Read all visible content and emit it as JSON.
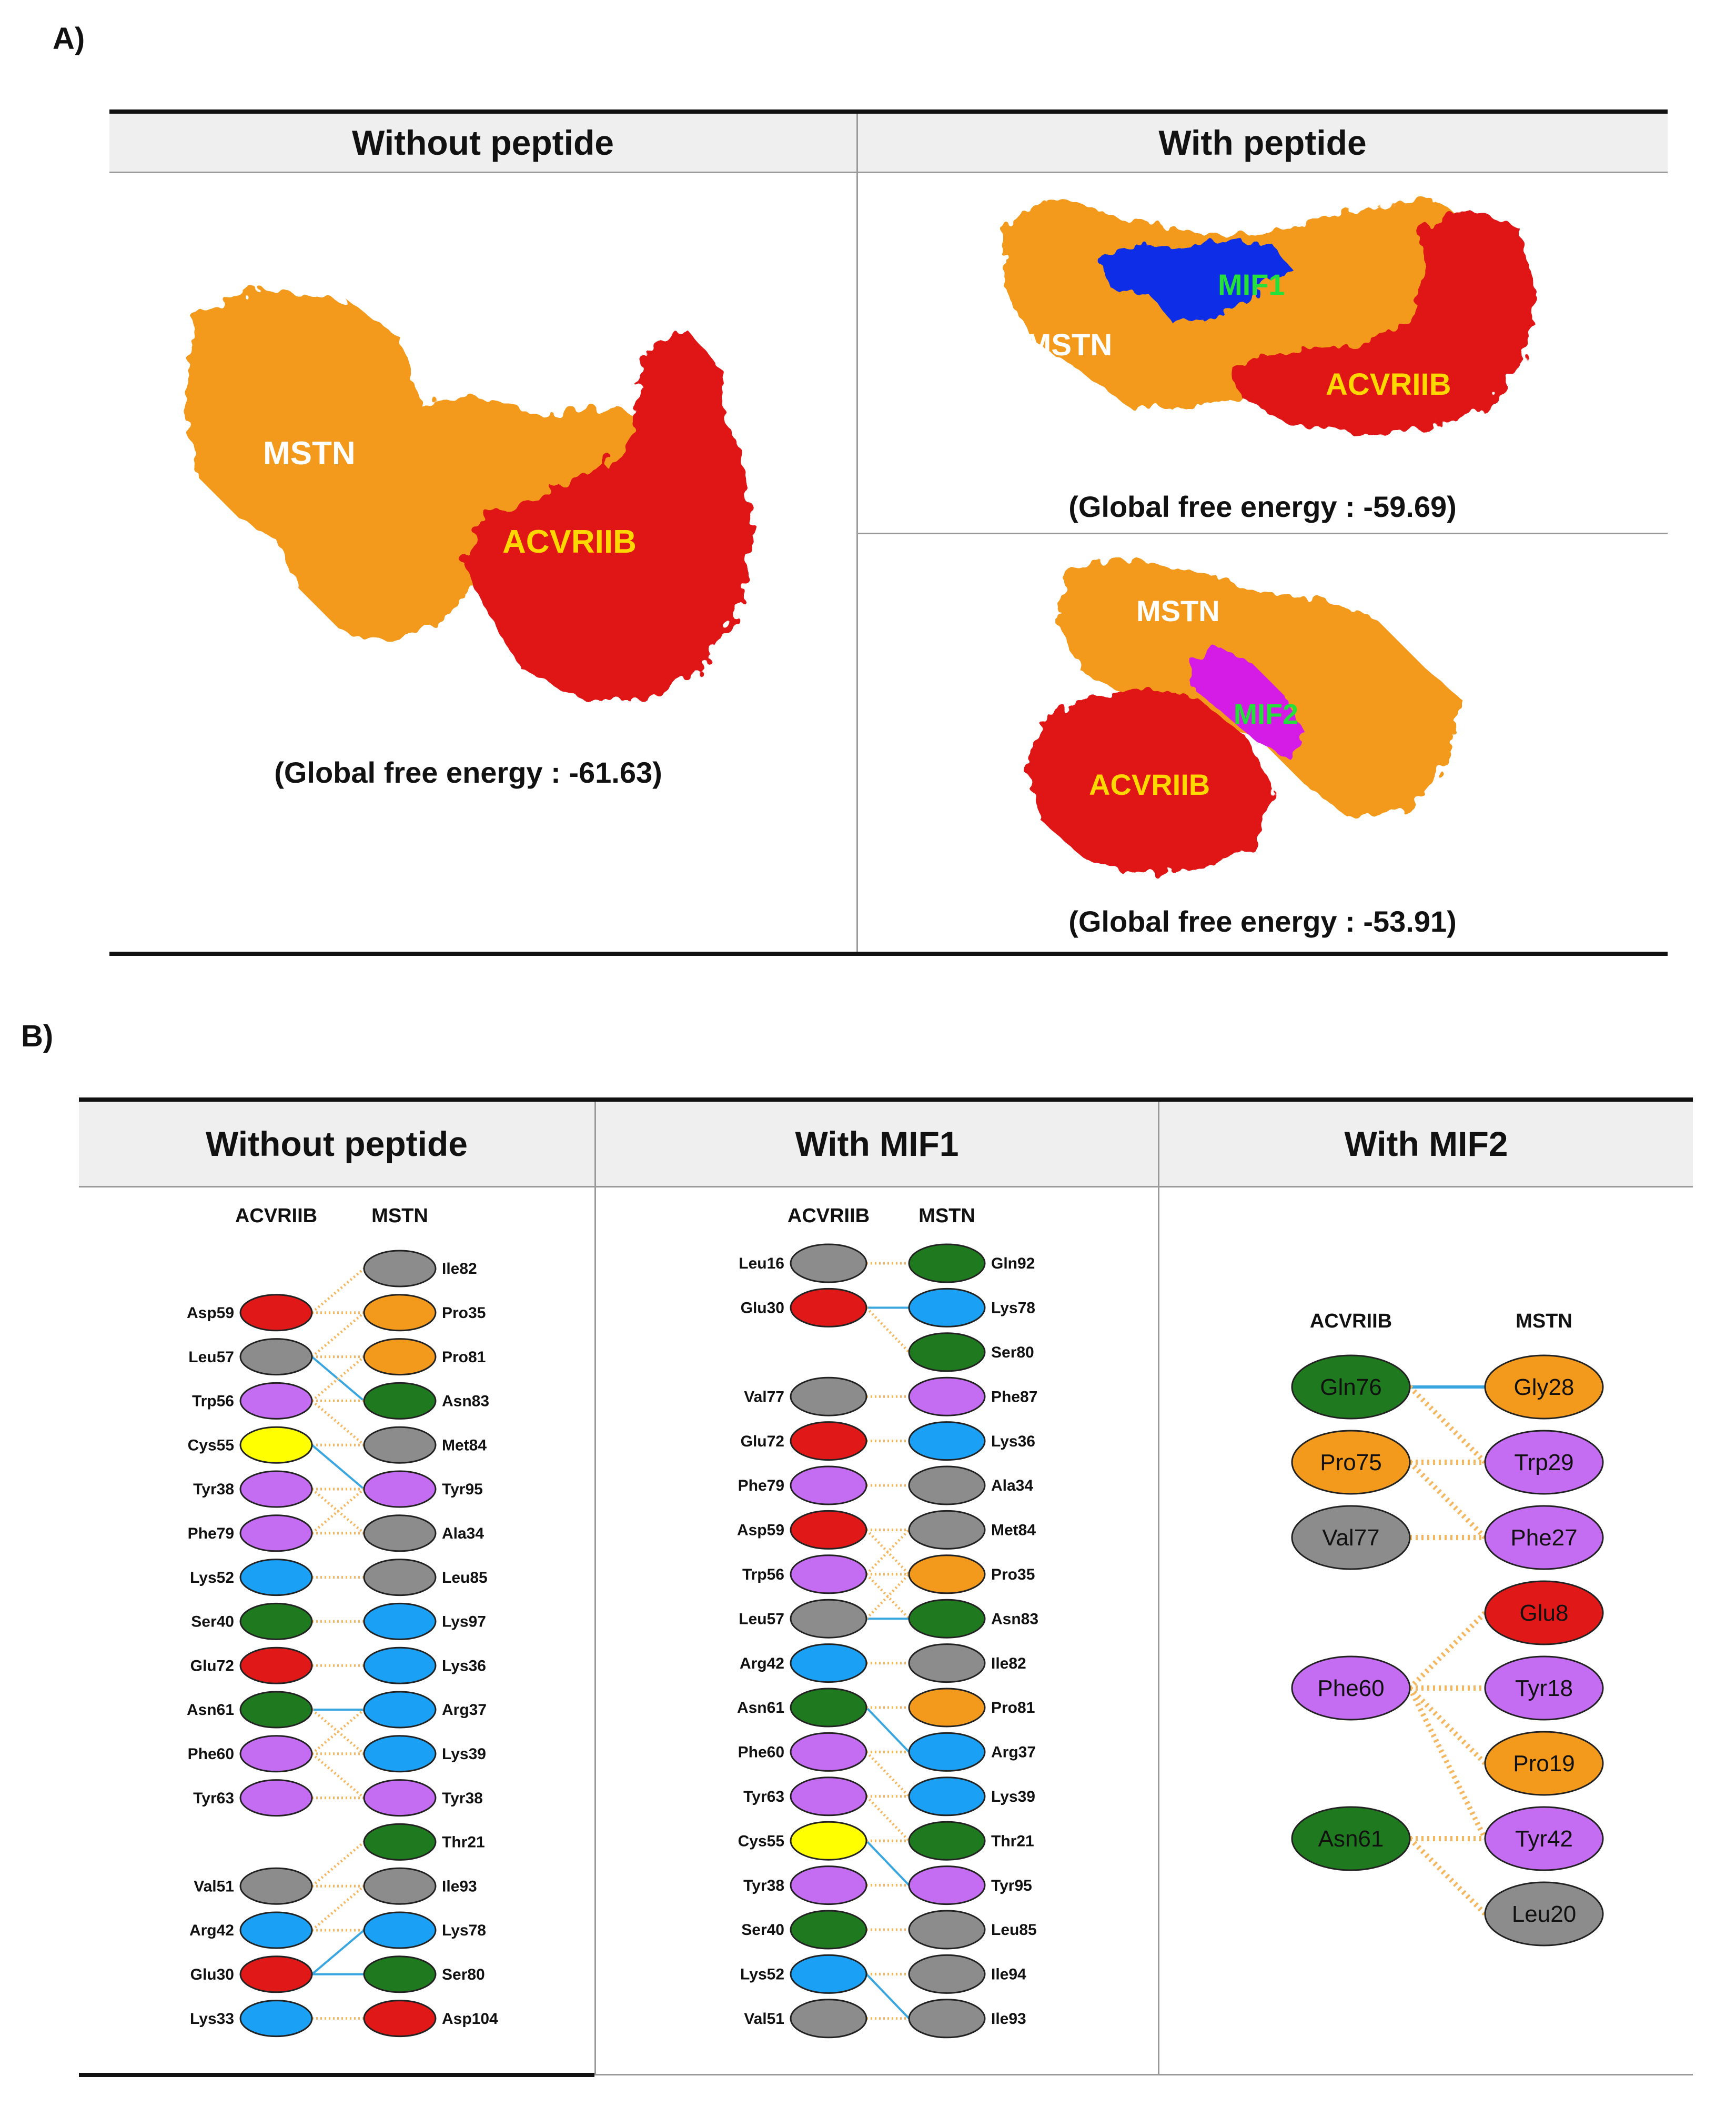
{
  "figure": {
    "panel_a_label": "A)",
    "panel_b_label": "B)",
    "colors": {
      "orange": "#f39a1c",
      "red": "#e01818",
      "blue": "#0a2ee6",
      "magenta": "#d41ee6",
      "gray": "#8c8c8c",
      "green": "#1f7a1f",
      "sky": "#1aa0f4",
      "violet": "#c46cf2",
      "yellow": "#ffff00",
      "label_white": "#ffffff",
      "label_yellow": "#ffd800",
      "label_green": "#25e03a"
    }
  },
  "panel_a": {
    "headers": {
      "left": "Without peptide",
      "right": "With peptide"
    },
    "no_peptide": {
      "mstn": "MSTN",
      "acvriib": "ACVRIIB",
      "energy": "(Global free energy : -61.63)"
    },
    "mif1": {
      "peptide": "MIF1",
      "mstn": "MSTN",
      "acvriib": "ACVRIIB",
      "energy": "(Global free energy : -59.69)"
    },
    "mif2": {
      "peptide": "MIF2",
      "mstn": "MSTN",
      "acvriib": "ACVRIIB",
      "energy": "(Global free energy : -53.91)"
    }
  },
  "panel_b": {
    "headers": [
      "Without peptide",
      "With MIF1",
      "With MIF2"
    ],
    "col_left": "ACVRIIB",
    "col_right": "MSTN",
    "no_peptide": {
      "left": [
        {
          "slot": 1,
          "name": "Asp59",
          "color": "red"
        },
        {
          "slot": 2,
          "name": "Leu57",
          "color": "gray"
        },
        {
          "slot": 3,
          "name": "Trp56",
          "color": "violet"
        },
        {
          "slot": 4,
          "name": "Cys55",
          "color": "yellow"
        },
        {
          "slot": 5,
          "name": "Tyr38",
          "color": "violet"
        },
        {
          "slot": 6,
          "name": "Phe79",
          "color": "violet"
        },
        {
          "slot": 7,
          "name": "Lys52",
          "color": "sky"
        },
        {
          "slot": 8,
          "name": "Ser40",
          "color": "green"
        },
        {
          "slot": 9,
          "name": "Glu72",
          "color": "red"
        },
        {
          "slot": 10,
          "name": "Asn61",
          "color": "green"
        },
        {
          "slot": 11,
          "name": "Phe60",
          "color": "violet"
        },
        {
          "slot": 12,
          "name": "Tyr63",
          "color": "violet"
        },
        {
          "slot": 14,
          "name": "Val51",
          "color": "gray"
        },
        {
          "slot": 15,
          "name": "Arg42",
          "color": "sky"
        },
        {
          "slot": 16,
          "name": "Glu30",
          "color": "red"
        },
        {
          "slot": 17,
          "name": "Lys33",
          "color": "sky"
        }
      ],
      "right": [
        {
          "slot": 0,
          "name": "Ile82",
          "color": "gray"
        },
        {
          "slot": 1,
          "name": "Pro35",
          "color": "orange"
        },
        {
          "slot": 2,
          "name": "Pro81",
          "color": "orange"
        },
        {
          "slot": 3,
          "name": "Asn83",
          "color": "green"
        },
        {
          "slot": 4,
          "name": "Met84",
          "color": "gray"
        },
        {
          "slot": 5,
          "name": "Tyr95",
          "color": "violet"
        },
        {
          "slot": 6,
          "name": "Ala34",
          "color": "gray"
        },
        {
          "slot": 7,
          "name": "Leu85",
          "color": "gray"
        },
        {
          "slot": 8,
          "name": "Lys97",
          "color": "sky"
        },
        {
          "slot": 9,
          "name": "Lys36",
          "color": "sky"
        },
        {
          "slot": 10,
          "name": "Arg37",
          "color": "sky"
        },
        {
          "slot": 11,
          "name": "Lys39",
          "color": "sky"
        },
        {
          "slot": 12,
          "name": "Tyr38",
          "color": "violet"
        },
        {
          "slot": 13,
          "name": "Thr21",
          "color": "green"
        },
        {
          "slot": 14,
          "name": "Ile93",
          "color": "gray"
        },
        {
          "slot": 15,
          "name": "Lys78",
          "color": "sky"
        },
        {
          "slot": 16,
          "name": "Ser80",
          "color": "green"
        },
        {
          "slot": 17,
          "name": "Asp104",
          "color": "red"
        }
      ]
    },
    "mif1": {
      "left": [
        {
          "slot": 0,
          "name": "Leu16",
          "color": "gray"
        },
        {
          "slot": 1,
          "name": "Glu30",
          "color": "red"
        },
        {
          "slot": 3,
          "name": "Val77",
          "color": "gray"
        },
        {
          "slot": 4,
          "name": "Glu72",
          "color": "red"
        },
        {
          "slot": 5,
          "name": "Phe79",
          "color": "violet"
        },
        {
          "slot": 6,
          "name": "Asp59",
          "color": "red"
        },
        {
          "slot": 7,
          "name": "Trp56",
          "color": "violet"
        },
        {
          "slot": 8,
          "name": "Leu57",
          "color": "gray"
        },
        {
          "slot": 9,
          "name": "Arg42",
          "color": "sky"
        },
        {
          "slot": 10,
          "name": "Asn61",
          "color": "green"
        },
        {
          "slot": 11,
          "name": "Phe60",
          "color": "violet"
        },
        {
          "slot": 12,
          "name": "Tyr63",
          "color": "violet"
        },
        {
          "slot": 13,
          "name": "Cys55",
          "color": "yellow"
        },
        {
          "slot": 14,
          "name": "Tyr38",
          "color": "violet"
        },
        {
          "slot": 15,
          "name": "Ser40",
          "color": "green"
        },
        {
          "slot": 16,
          "name": "Lys52",
          "color": "sky"
        },
        {
          "slot": 17,
          "name": "Val51",
          "color": "gray"
        }
      ],
      "right": [
        {
          "slot": 0,
          "name": "Gln92",
          "color": "green"
        },
        {
          "slot": 1,
          "name": "Lys78",
          "color": "sky"
        },
        {
          "slot": 2,
          "name": "Ser80",
          "color": "green"
        },
        {
          "slot": 3,
          "name": "Phe87",
          "color": "violet"
        },
        {
          "slot": 4,
          "name": "Lys36",
          "color": "sky"
        },
        {
          "slot": 5,
          "name": "Ala34",
          "color": "gray"
        },
        {
          "slot": 6,
          "name": "Met84",
          "color": "gray"
        },
        {
          "slot": 7,
          "name": "Pro35",
          "color": "orange"
        },
        {
          "slot": 8,
          "name": "Asn83",
          "color": "green"
        },
        {
          "slot": 9,
          "name": "Ile82",
          "color": "gray"
        },
        {
          "slot": 10,
          "name": "Pro81",
          "color": "orange"
        },
        {
          "slot": 11,
          "name": "Arg37",
          "color": "sky"
        },
        {
          "slot": 12,
          "name": "Lys39",
          "color": "sky"
        },
        {
          "slot": 13,
          "name": "Thr21",
          "color": "green"
        },
        {
          "slot": 14,
          "name": "Tyr95",
          "color": "violet"
        },
        {
          "slot": 15,
          "name": "Leu85",
          "color": "gray"
        },
        {
          "slot": 16,
          "name": "Ile94",
          "color": "gray"
        },
        {
          "slot": 17,
          "name": "Ile93",
          "color": "gray"
        }
      ]
    },
    "mif2": {
      "left": [
        {
          "slot": 0,
          "name": "Gln76",
          "color": "green"
        },
        {
          "slot": 1,
          "name": "Pro75",
          "color": "orange"
        },
        {
          "slot": 2,
          "name": "Val77",
          "color": "gray"
        },
        {
          "slot": 4,
          "name": "Phe60",
          "color": "violet"
        },
        {
          "slot": 6,
          "name": "Asn61",
          "color": "green"
        }
      ],
      "right": [
        {
          "slot": 0,
          "name": "Gly28",
          "color": "orange"
        },
        {
          "slot": 1,
          "name": "Trp29",
          "color": "violet"
        },
        {
          "slot": 2,
          "name": "Phe27",
          "color": "violet"
        },
        {
          "slot": 3,
          "name": "Glu8",
          "color": "red"
        },
        {
          "slot": 4,
          "name": "Tyr18",
          "color": "violet"
        },
        {
          "slot": 5,
          "name": "Pro19",
          "color": "orange"
        },
        {
          "slot": 6,
          "name": "Tyr42",
          "color": "violet"
        },
        {
          "slot": 7,
          "name": "Leu20",
          "color": "gray"
        }
      ]
    }
  }
}
